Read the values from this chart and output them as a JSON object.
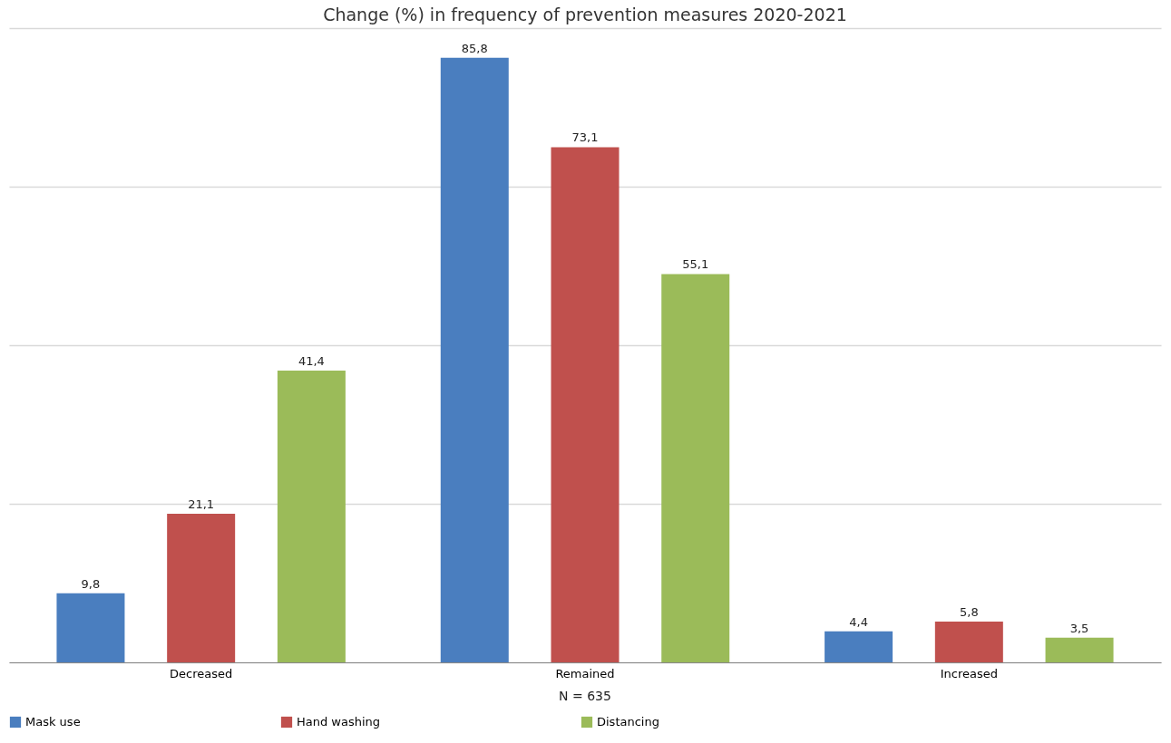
{
  "chart_data": {
    "type": "bar",
    "title": "Change (%) in frequency of prevention measures 2020-2021",
    "categories": [
      "Decreased",
      "Remained",
      "Increased"
    ],
    "series": [
      {
        "name": "Mask use",
        "color": "#4a7ebf",
        "values": [
          9.8,
          85.8,
          4.4
        ],
        "value_labels": [
          "9,8",
          "85,8",
          "4,4"
        ]
      },
      {
        "name": "Hand washing",
        "color": "#c0504d",
        "values": [
          21.1,
          73.1,
          5.8
        ],
        "value_labels": [
          "21,1",
          "73,1",
          "5,8"
        ]
      },
      {
        "name": "Distancing",
        "color": "#9bbb59",
        "values": [
          41.4,
          55.1,
          3.5
        ],
        "value_labels": [
          "41,4",
          "55,1",
          "3,5"
        ]
      }
    ],
    "ylim": [
      0,
      90
    ],
    "yticks": [
      {
        "value": 0,
        "label": null
      },
      {
        "value": 22.5,
        "label": null
      },
      {
        "value": 45,
        "label": null
      },
      {
        "value": 67.5,
        "label": null
      },
      {
        "value": 90,
        "label": null
      }
    ],
    "grid": "y",
    "tick_labels": "x",
    "legend": "bottom",
    "annotations": [
      "N = 635"
    ]
  }
}
